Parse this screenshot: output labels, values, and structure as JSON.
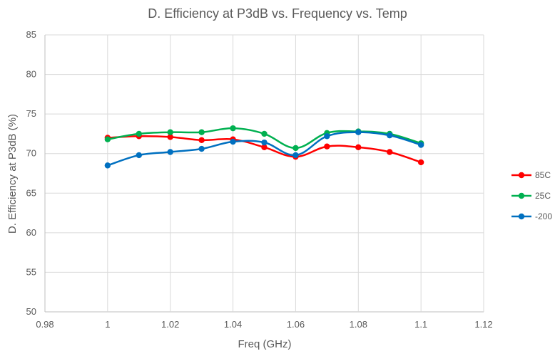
{
  "chart_data": {
    "type": "line",
    "title": "D. Efficiency at P3dB vs. Frequency vs. Temp",
    "xlabel": "Freq (GHz)",
    "ylabel": "D. Efficiency at P3dB (%)",
    "xlim": [
      0.98,
      1.12
    ],
    "ylim": [
      50,
      85
    ],
    "x_ticks": [
      "0.98",
      "1",
      "1.02",
      "1.04",
      "1.06",
      "1.08",
      "1.1",
      "1.12"
    ],
    "y_ticks": [
      "50",
      "55",
      "60",
      "65",
      "70",
      "75",
      "80",
      "85"
    ],
    "grid": "vertical and horizontal",
    "legend_position": "right",
    "x": [
      1.0,
      1.01,
      1.02,
      1.03,
      1.04,
      1.05,
      1.06,
      1.07,
      1.08,
      1.09,
      1.1
    ],
    "series": [
      {
        "name": "85C",
        "color": "#ff0000",
        "values": [
          72.0,
          72.2,
          72.1,
          71.7,
          71.8,
          70.8,
          69.6,
          70.9,
          70.8,
          70.2,
          68.9
        ]
      },
      {
        "name": "25C",
        "color": "#00b050",
        "values": [
          71.8,
          72.5,
          72.7,
          72.7,
          73.2,
          72.5,
          70.7,
          72.6,
          72.8,
          72.5,
          71.3
        ]
      },
      {
        "name": "-200",
        "color": "#0070c0",
        "values": [
          68.5,
          69.8,
          70.2,
          70.6,
          71.5,
          71.4,
          69.8,
          72.2,
          72.7,
          72.3,
          71.1
        ]
      }
    ]
  }
}
